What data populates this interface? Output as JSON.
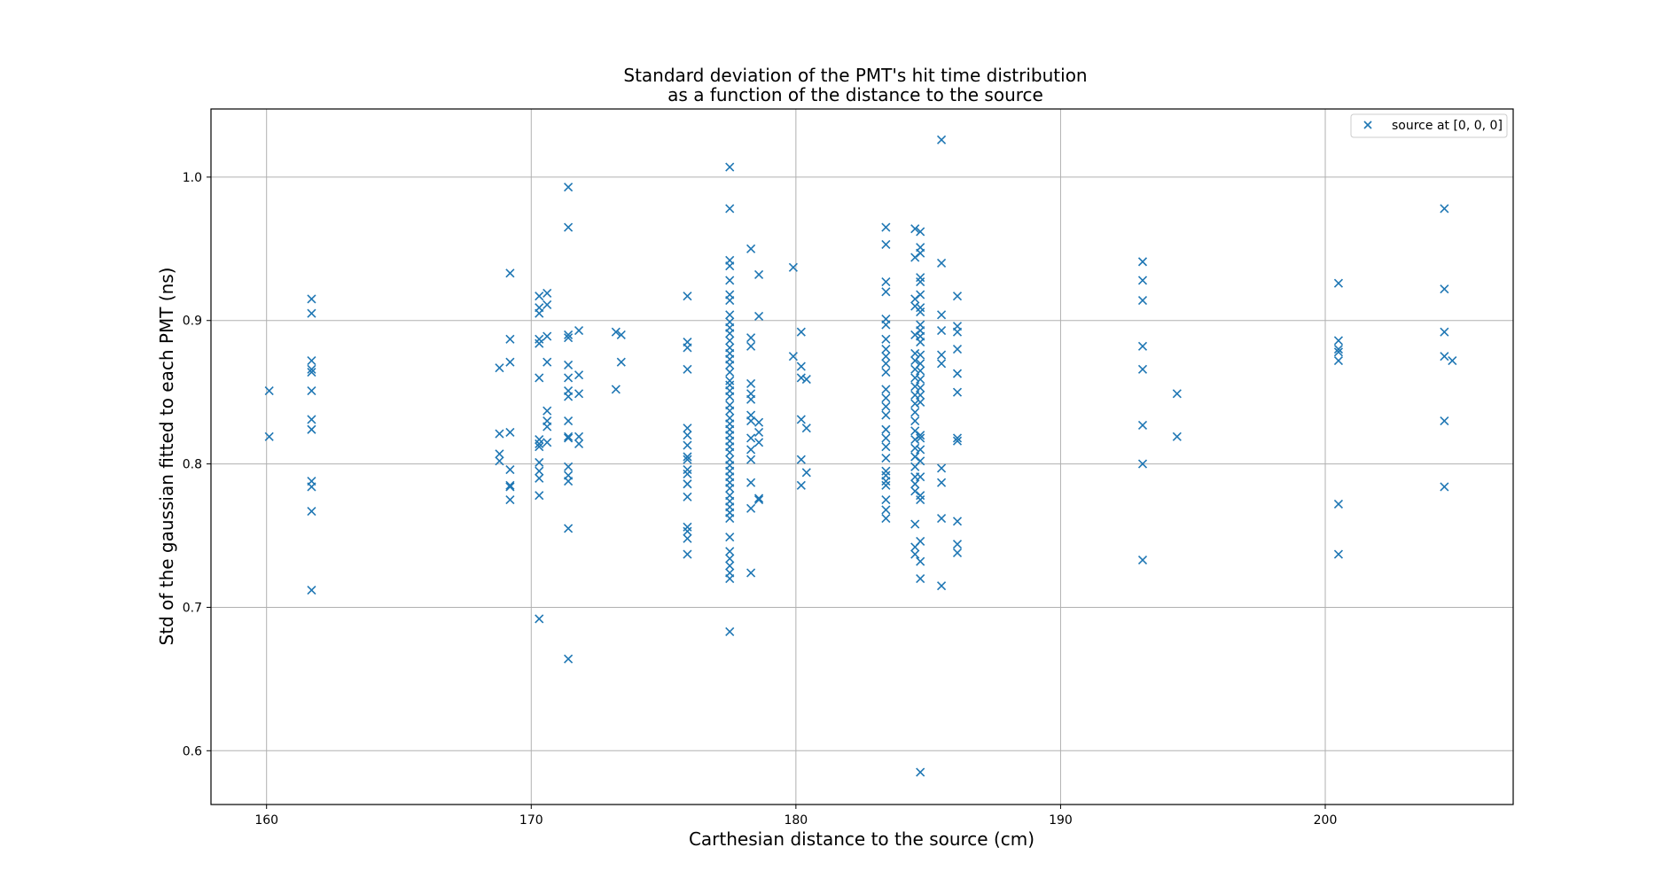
{
  "chart_data": {
    "type": "scatter",
    "title_line1": "Standard deviation of the PMT's hit time distribution",
    "title_line2": "as a function of the distance to the source",
    "xlabel": "Carthesian distance to the source (cm)",
    "ylabel": "Std of the gaussian fitted to each PMT (ns)",
    "xlim": [
      157.9,
      207.1
    ],
    "ylim": [
      0.5625,
      1.0475
    ],
    "xticks": [
      160,
      170,
      180,
      190,
      200
    ],
    "xtick_labels": [
      "160",
      "170",
      "180",
      "190",
      "200"
    ],
    "yticks": [
      0.6,
      0.7,
      0.8,
      0.9,
      1.0
    ],
    "ytick_labels": [
      "0.6",
      "0.7",
      "0.8",
      "0.9",
      "1.0"
    ],
    "grid": true,
    "legend_position": "top-right",
    "marker": "x",
    "color": "#1f77b4",
    "series": [
      {
        "name": "source at [0, 0, 0]",
        "points": [
          [
            160.1,
            0.851
          ],
          [
            160.1,
            0.819
          ],
          [
            161.7,
            0.915
          ],
          [
            161.7,
            0.905
          ],
          [
            161.7,
            0.872
          ],
          [
            161.7,
            0.866
          ],
          [
            161.7,
            0.864
          ],
          [
            161.7,
            0.851
          ],
          [
            161.7,
            0.831
          ],
          [
            161.7,
            0.824
          ],
          [
            161.7,
            0.788
          ],
          [
            161.7,
            0.784
          ],
          [
            161.7,
            0.767
          ],
          [
            161.7,
            0.712
          ],
          [
            168.8,
            0.867
          ],
          [
            168.8,
            0.821
          ],
          [
            168.8,
            0.807
          ],
          [
            168.8,
            0.802
          ],
          [
            169.2,
            0.933
          ],
          [
            169.2,
            0.887
          ],
          [
            169.2,
            0.871
          ],
          [
            169.2,
            0.822
          ],
          [
            169.2,
            0.796
          ],
          [
            169.2,
            0.785
          ],
          [
            169.2,
            0.784
          ],
          [
            169.2,
            0.775
          ],
          [
            170.3,
            0.917
          ],
          [
            170.3,
            0.909
          ],
          [
            170.3,
            0.905
          ],
          [
            170.3,
            0.887
          ],
          [
            170.3,
            0.884
          ],
          [
            170.3,
            0.86
          ],
          [
            170.3,
            0.817
          ],
          [
            170.3,
            0.814
          ],
          [
            170.3,
            0.812
          ],
          [
            170.3,
            0.801
          ],
          [
            170.3,
            0.795
          ],
          [
            170.3,
            0.79
          ],
          [
            170.3,
            0.778
          ],
          [
            170.3,
            0.692
          ],
          [
            170.6,
            0.919
          ],
          [
            170.6,
            0.911
          ],
          [
            170.6,
            0.889
          ],
          [
            170.6,
            0.871
          ],
          [
            170.6,
            0.837
          ],
          [
            170.6,
            0.83
          ],
          [
            170.6,
            0.826
          ],
          [
            170.6,
            0.815
          ],
          [
            171.4,
            0.993
          ],
          [
            171.4,
            0.965
          ],
          [
            171.4,
            0.89
          ],
          [
            171.4,
            0.888
          ],
          [
            171.4,
            0.869
          ],
          [
            171.4,
            0.86
          ],
          [
            171.4,
            0.851
          ],
          [
            171.4,
            0.847
          ],
          [
            171.4,
            0.83
          ],
          [
            171.4,
            0.819
          ],
          [
            171.4,
            0.818
          ],
          [
            171.4,
            0.798
          ],
          [
            171.4,
            0.792
          ],
          [
            171.4,
            0.788
          ],
          [
            171.4,
            0.755
          ],
          [
            171.4,
            0.664
          ],
          [
            171.8,
            0.893
          ],
          [
            171.8,
            0.862
          ],
          [
            171.8,
            0.849
          ],
          [
            171.8,
            0.819
          ],
          [
            171.8,
            0.814
          ],
          [
            173.2,
            0.892
          ],
          [
            173.2,
            0.852
          ],
          [
            173.4,
            0.89
          ],
          [
            173.4,
            0.871
          ],
          [
            175.9,
            0.917
          ],
          [
            175.9,
            0.885
          ],
          [
            175.9,
            0.881
          ],
          [
            175.9,
            0.866
          ],
          [
            175.9,
            0.825
          ],
          [
            175.9,
            0.82
          ],
          [
            175.9,
            0.813
          ],
          [
            175.9,
            0.805
          ],
          [
            175.9,
            0.803
          ],
          [
            175.9,
            0.796
          ],
          [
            175.9,
            0.793
          ],
          [
            175.9,
            0.786
          ],
          [
            175.9,
            0.777
          ],
          [
            175.9,
            0.756
          ],
          [
            175.9,
            0.753
          ],
          [
            175.9,
            0.748
          ],
          [
            175.9,
            0.737
          ],
          [
            177.5,
            1.007
          ],
          [
            177.5,
            0.978
          ],
          [
            177.5,
            0.942
          ],
          [
            177.5,
            0.938
          ],
          [
            177.5,
            0.928
          ],
          [
            177.5,
            0.918
          ],
          [
            177.5,
            0.914
          ],
          [
            177.5,
            0.904
          ],
          [
            177.5,
            0.899
          ],
          [
            177.5,
            0.895
          ],
          [
            177.5,
            0.891
          ],
          [
            177.5,
            0.886
          ],
          [
            177.5,
            0.881
          ],
          [
            177.5,
            0.877
          ],
          [
            177.5,
            0.873
          ],
          [
            177.5,
            0.869
          ],
          [
            177.5,
            0.864
          ],
          [
            177.5,
            0.858
          ],
          [
            177.5,
            0.855
          ],
          [
            177.5,
            0.851
          ],
          [
            177.5,
            0.847
          ],
          [
            177.5,
            0.841
          ],
          [
            177.5,
            0.837
          ],
          [
            177.5,
            0.832
          ],
          [
            177.5,
            0.828
          ],
          [
            177.5,
            0.824
          ],
          [
            177.5,
            0.82
          ],
          [
            177.5,
            0.816
          ],
          [
            177.5,
            0.812
          ],
          [
            177.5,
            0.808
          ],
          [
            177.5,
            0.803
          ],
          [
            177.5,
            0.799
          ],
          [
            177.5,
            0.795
          ],
          [
            177.5,
            0.791
          ],
          [
            177.5,
            0.787
          ],
          [
            177.5,
            0.783
          ],
          [
            177.5,
            0.778
          ],
          [
            177.5,
            0.774
          ],
          [
            177.5,
            0.77
          ],
          [
            177.5,
            0.766
          ],
          [
            177.5,
            0.762
          ],
          [
            177.5,
            0.749
          ],
          [
            177.5,
            0.739
          ],
          [
            177.5,
            0.734
          ],
          [
            177.5,
            0.729
          ],
          [
            177.5,
            0.724
          ],
          [
            177.5,
            0.72
          ],
          [
            177.5,
            0.683
          ],
          [
            178.3,
            0.95
          ],
          [
            178.3,
            0.888
          ],
          [
            178.3,
            0.882
          ],
          [
            178.3,
            0.856
          ],
          [
            178.3,
            0.849
          ],
          [
            178.3,
            0.845
          ],
          [
            178.3,
            0.834
          ],
          [
            178.3,
            0.83
          ],
          [
            178.3,
            0.818
          ],
          [
            178.3,
            0.81
          ],
          [
            178.3,
            0.803
          ],
          [
            178.3,
            0.787
          ],
          [
            178.3,
            0.769
          ],
          [
            178.3,
            0.724
          ],
          [
            178.6,
            0.932
          ],
          [
            178.6,
            0.903
          ],
          [
            178.6,
            0.829
          ],
          [
            178.6,
            0.822
          ],
          [
            178.6,
            0.815
          ],
          [
            178.6,
            0.776
          ],
          [
            178.6,
            0.775
          ],
          [
            179.9,
            0.937
          ],
          [
            179.9,
            0.875
          ],
          [
            180.2,
            0.892
          ],
          [
            180.2,
            0.868
          ],
          [
            180.2,
            0.86
          ],
          [
            180.2,
            0.831
          ],
          [
            180.2,
            0.803
          ],
          [
            180.2,
            0.785
          ],
          [
            180.4,
            0.859
          ],
          [
            180.4,
            0.825
          ],
          [
            180.4,
            0.794
          ],
          [
            183.4,
            0.965
          ],
          [
            183.4,
            0.953
          ],
          [
            183.4,
            0.927
          ],
          [
            183.4,
            0.92
          ],
          [
            183.4,
            0.901
          ],
          [
            183.4,
            0.897
          ],
          [
            183.4,
            0.887
          ],
          [
            183.4,
            0.88
          ],
          [
            183.4,
            0.875
          ],
          [
            183.4,
            0.87
          ],
          [
            183.4,
            0.864
          ],
          [
            183.4,
            0.852
          ],
          [
            183.4,
            0.846
          ],
          [
            183.4,
            0.84
          ],
          [
            183.4,
            0.834
          ],
          [
            183.4,
            0.824
          ],
          [
            183.4,
            0.818
          ],
          [
            183.4,
            0.812
          ],
          [
            183.4,
            0.804
          ],
          [
            183.4,
            0.795
          ],
          [
            183.4,
            0.792
          ],
          [
            183.4,
            0.788
          ],
          [
            183.4,
            0.785
          ],
          [
            183.4,
            0.775
          ],
          [
            183.4,
            0.768
          ],
          [
            183.4,
            0.762
          ],
          [
            184.5,
            0.964
          ],
          [
            184.5,
            0.944
          ],
          [
            184.5,
            0.915
          ],
          [
            184.5,
            0.91
          ],
          [
            184.5,
            0.89
          ],
          [
            184.5,
            0.877
          ],
          [
            184.5,
            0.872
          ],
          [
            184.5,
            0.866
          ],
          [
            184.5,
            0.86
          ],
          [
            184.5,
            0.854
          ],
          [
            184.5,
            0.848
          ],
          [
            184.5,
            0.842
          ],
          [
            184.5,
            0.836
          ],
          [
            184.5,
            0.83
          ],
          [
            184.5,
            0.823
          ],
          [
            184.5,
            0.817
          ],
          [
            184.5,
            0.811
          ],
          [
            184.5,
            0.805
          ],
          [
            184.5,
            0.798
          ],
          [
            184.5,
            0.791
          ],
          [
            184.5,
            0.786
          ],
          [
            184.5,
            0.781
          ],
          [
            184.5,
            0.758
          ],
          [
            184.5,
            0.742
          ],
          [
            184.5,
            0.737
          ],
          [
            184.7,
            0.962
          ],
          [
            184.7,
            0.951
          ],
          [
            184.7,
            0.947
          ],
          [
            184.7,
            0.93
          ],
          [
            184.7,
            0.927
          ],
          [
            184.7,
            0.918
          ],
          [
            184.7,
            0.909
          ],
          [
            184.7,
            0.906
          ],
          [
            184.7,
            0.897
          ],
          [
            184.7,
            0.893
          ],
          [
            184.7,
            0.889
          ],
          [
            184.7,
            0.885
          ],
          [
            184.7,
            0.876
          ],
          [
            184.7,
            0.87
          ],
          [
            184.7,
            0.865
          ],
          [
            184.7,
            0.859
          ],
          [
            184.7,
            0.853
          ],
          [
            184.7,
            0.848
          ],
          [
            184.7,
            0.843
          ],
          [
            184.7,
            0.82
          ],
          [
            184.7,
            0.818
          ],
          [
            184.7,
            0.81
          ],
          [
            184.7,
            0.802
          ],
          [
            184.7,
            0.791
          ],
          [
            184.7,
            0.778
          ],
          [
            184.7,
            0.775
          ],
          [
            184.7,
            0.746
          ],
          [
            184.7,
            0.732
          ],
          [
            184.7,
            0.72
          ],
          [
            184.7,
            0.585
          ],
          [
            185.5,
            1.026
          ],
          [
            185.5,
            0.94
          ],
          [
            185.5,
            0.904
          ],
          [
            185.5,
            0.893
          ],
          [
            185.5,
            0.876
          ],
          [
            185.5,
            0.87
          ],
          [
            185.5,
            0.797
          ],
          [
            185.5,
            0.787
          ],
          [
            185.5,
            0.762
          ],
          [
            185.5,
            0.715
          ],
          [
            186.1,
            0.917
          ],
          [
            186.1,
            0.896
          ],
          [
            186.1,
            0.892
          ],
          [
            186.1,
            0.88
          ],
          [
            186.1,
            0.863
          ],
          [
            186.1,
            0.85
          ],
          [
            186.1,
            0.818
          ],
          [
            186.1,
            0.816
          ],
          [
            186.1,
            0.76
          ],
          [
            186.1,
            0.744
          ],
          [
            186.1,
            0.738
          ],
          [
            193.1,
            0.941
          ],
          [
            193.1,
            0.928
          ],
          [
            193.1,
            0.914
          ],
          [
            193.1,
            0.882
          ],
          [
            193.1,
            0.866
          ],
          [
            193.1,
            0.827
          ],
          [
            193.1,
            0.8
          ],
          [
            193.1,
            0.733
          ],
          [
            194.4,
            0.849
          ],
          [
            194.4,
            0.819
          ],
          [
            200.5,
            0.926
          ],
          [
            200.5,
            0.886
          ],
          [
            200.5,
            0.88
          ],
          [
            200.5,
            0.878
          ],
          [
            200.5,
            0.872
          ],
          [
            200.5,
            0.772
          ],
          [
            200.5,
            0.737
          ],
          [
            204.5,
            0.978
          ],
          [
            204.5,
            0.922
          ],
          [
            204.5,
            0.892
          ],
          [
            204.5,
            0.875
          ],
          [
            204.5,
            0.83
          ],
          [
            204.5,
            0.784
          ],
          [
            204.8,
            0.872
          ]
        ]
      }
    ]
  }
}
